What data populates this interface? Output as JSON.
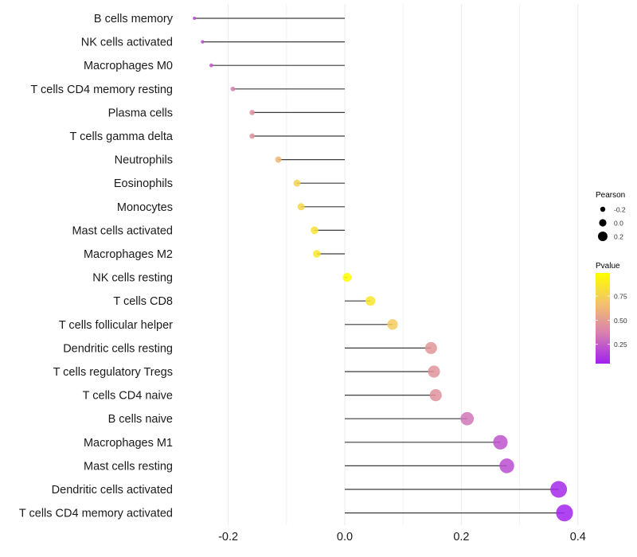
{
  "chart_data": {
    "type": "lollipop",
    "title": "",
    "xlabel": "",
    "ylabel": "",
    "xlim": [
      -0.29,
      0.41
    ],
    "x_ticks": [
      -0.2,
      0.0,
      0.2,
      0.4
    ],
    "x_tick_labels": [
      "-0.2",
      "0.0",
      "0.2",
      "0.4"
    ],
    "grid": true,
    "categories": [
      "B cells memory",
      "NK cells activated",
      "Macrophages M0",
      "T cells CD4 memory resting",
      "Plasma cells",
      "T cells gamma delta",
      "Neutrophils",
      "Eosinophils",
      "Monocytes",
      "Mast cells activated",
      "Macrophages M2",
      "NK cells resting",
      "T cells CD8",
      "T cells follicular helper",
      "Dendritic cells resting",
      "T cells regulatory  Tregs ",
      "T cells CD4 naive",
      "B cells naive",
      "Macrophages M1",
      "Mast cells resting",
      "Dendritic cells activated",
      "T cells CD4 memory activated"
    ],
    "series": [
      {
        "name": "Pearson",
        "values": [
          -0.258,
          -0.244,
          -0.229,
          -0.192,
          -0.159,
          -0.159,
          -0.114,
          -0.082,
          -0.075,
          -0.052,
          -0.048,
          0.004,
          0.044,
          0.082,
          0.148,
          0.153,
          0.156,
          0.21,
          0.267,
          0.278,
          0.367,
          0.377
        ]
      },
      {
        "name": "Pvalue",
        "values": [
          0.18,
          0.2,
          0.23,
          0.36,
          0.45,
          0.45,
          0.62,
          0.75,
          0.78,
          0.84,
          0.86,
          0.99,
          0.86,
          0.72,
          0.47,
          0.46,
          0.45,
          0.33,
          0.22,
          0.2,
          0.08,
          0.06
        ]
      }
    ],
    "legends": [
      {
        "title": "Pearson",
        "type": "size",
        "entries": [
          "-0.2",
          "0.0",
          "0.2"
        ],
        "values": [
          -0.2,
          0.0,
          0.2
        ],
        "placement": "right"
      },
      {
        "title": "Pvalue",
        "type": "colorbar",
        "tick_labels": [
          "0.75",
          "0.50",
          "0.25"
        ],
        "ticks": [
          0.75,
          0.5,
          0.25
        ],
        "range": [
          0.05,
          0.99
        ],
        "colors": [
          "#a020f0",
          "#d77fb0",
          "#f2c36b",
          "#ffff00"
        ],
        "placement": "right"
      }
    ]
  }
}
